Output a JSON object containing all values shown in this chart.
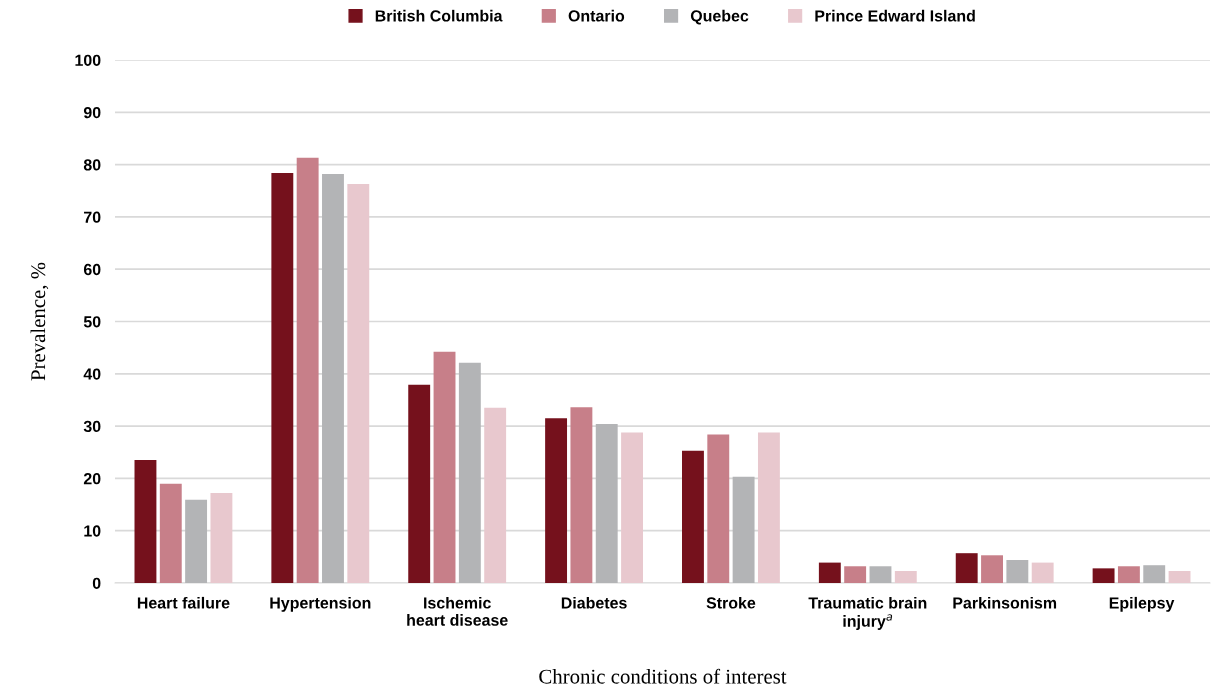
{
  "chart_data": {
    "type": "bar",
    "xlabel": "Chronic conditions of interest",
    "ylabel": "Prevalence, %",
    "categories": [
      "Heart failure",
      "Hypertension",
      "Ischemic\nheart disease",
      "Diabetes",
      "Stroke",
      "Traumatic brain\ninjury$^{a}$",
      "Parkinsonism",
      "Epilepsy"
    ],
    "series": [
      {
        "name": "British Columbia",
        "color": "#75111c",
        "values": [
          23.5,
          78.4,
          37.9,
          31.5,
          25.3,
          3.9,
          5.7,
          2.8
        ]
      },
      {
        "name": "Ontario",
        "color": "#c77f89",
        "values": [
          19.0,
          81.3,
          44.2,
          33.6,
          28.4,
          3.2,
          5.3,
          3.2
        ]
      },
      {
        "name": "Quebec",
        "color": "#b3b4b6",
        "values": [
          15.9,
          78.2,
          42.1,
          30.4,
          20.3,
          3.2,
          4.4,
          3.4
        ]
      },
      {
        "name": "Prince Edward Island",
        "color": "#e8c8ce",
        "values": [
          17.2,
          76.3,
          33.5,
          28.8,
          28.8,
          2.3,
          3.9,
          2.3
        ]
      }
    ],
    "ylim": [
      0,
      100
    ],
    "yticks": [
      0,
      10,
      20,
      30,
      40,
      50,
      60,
      70,
      80,
      90,
      100
    ],
    "grid": "y",
    "legend": "top"
  }
}
